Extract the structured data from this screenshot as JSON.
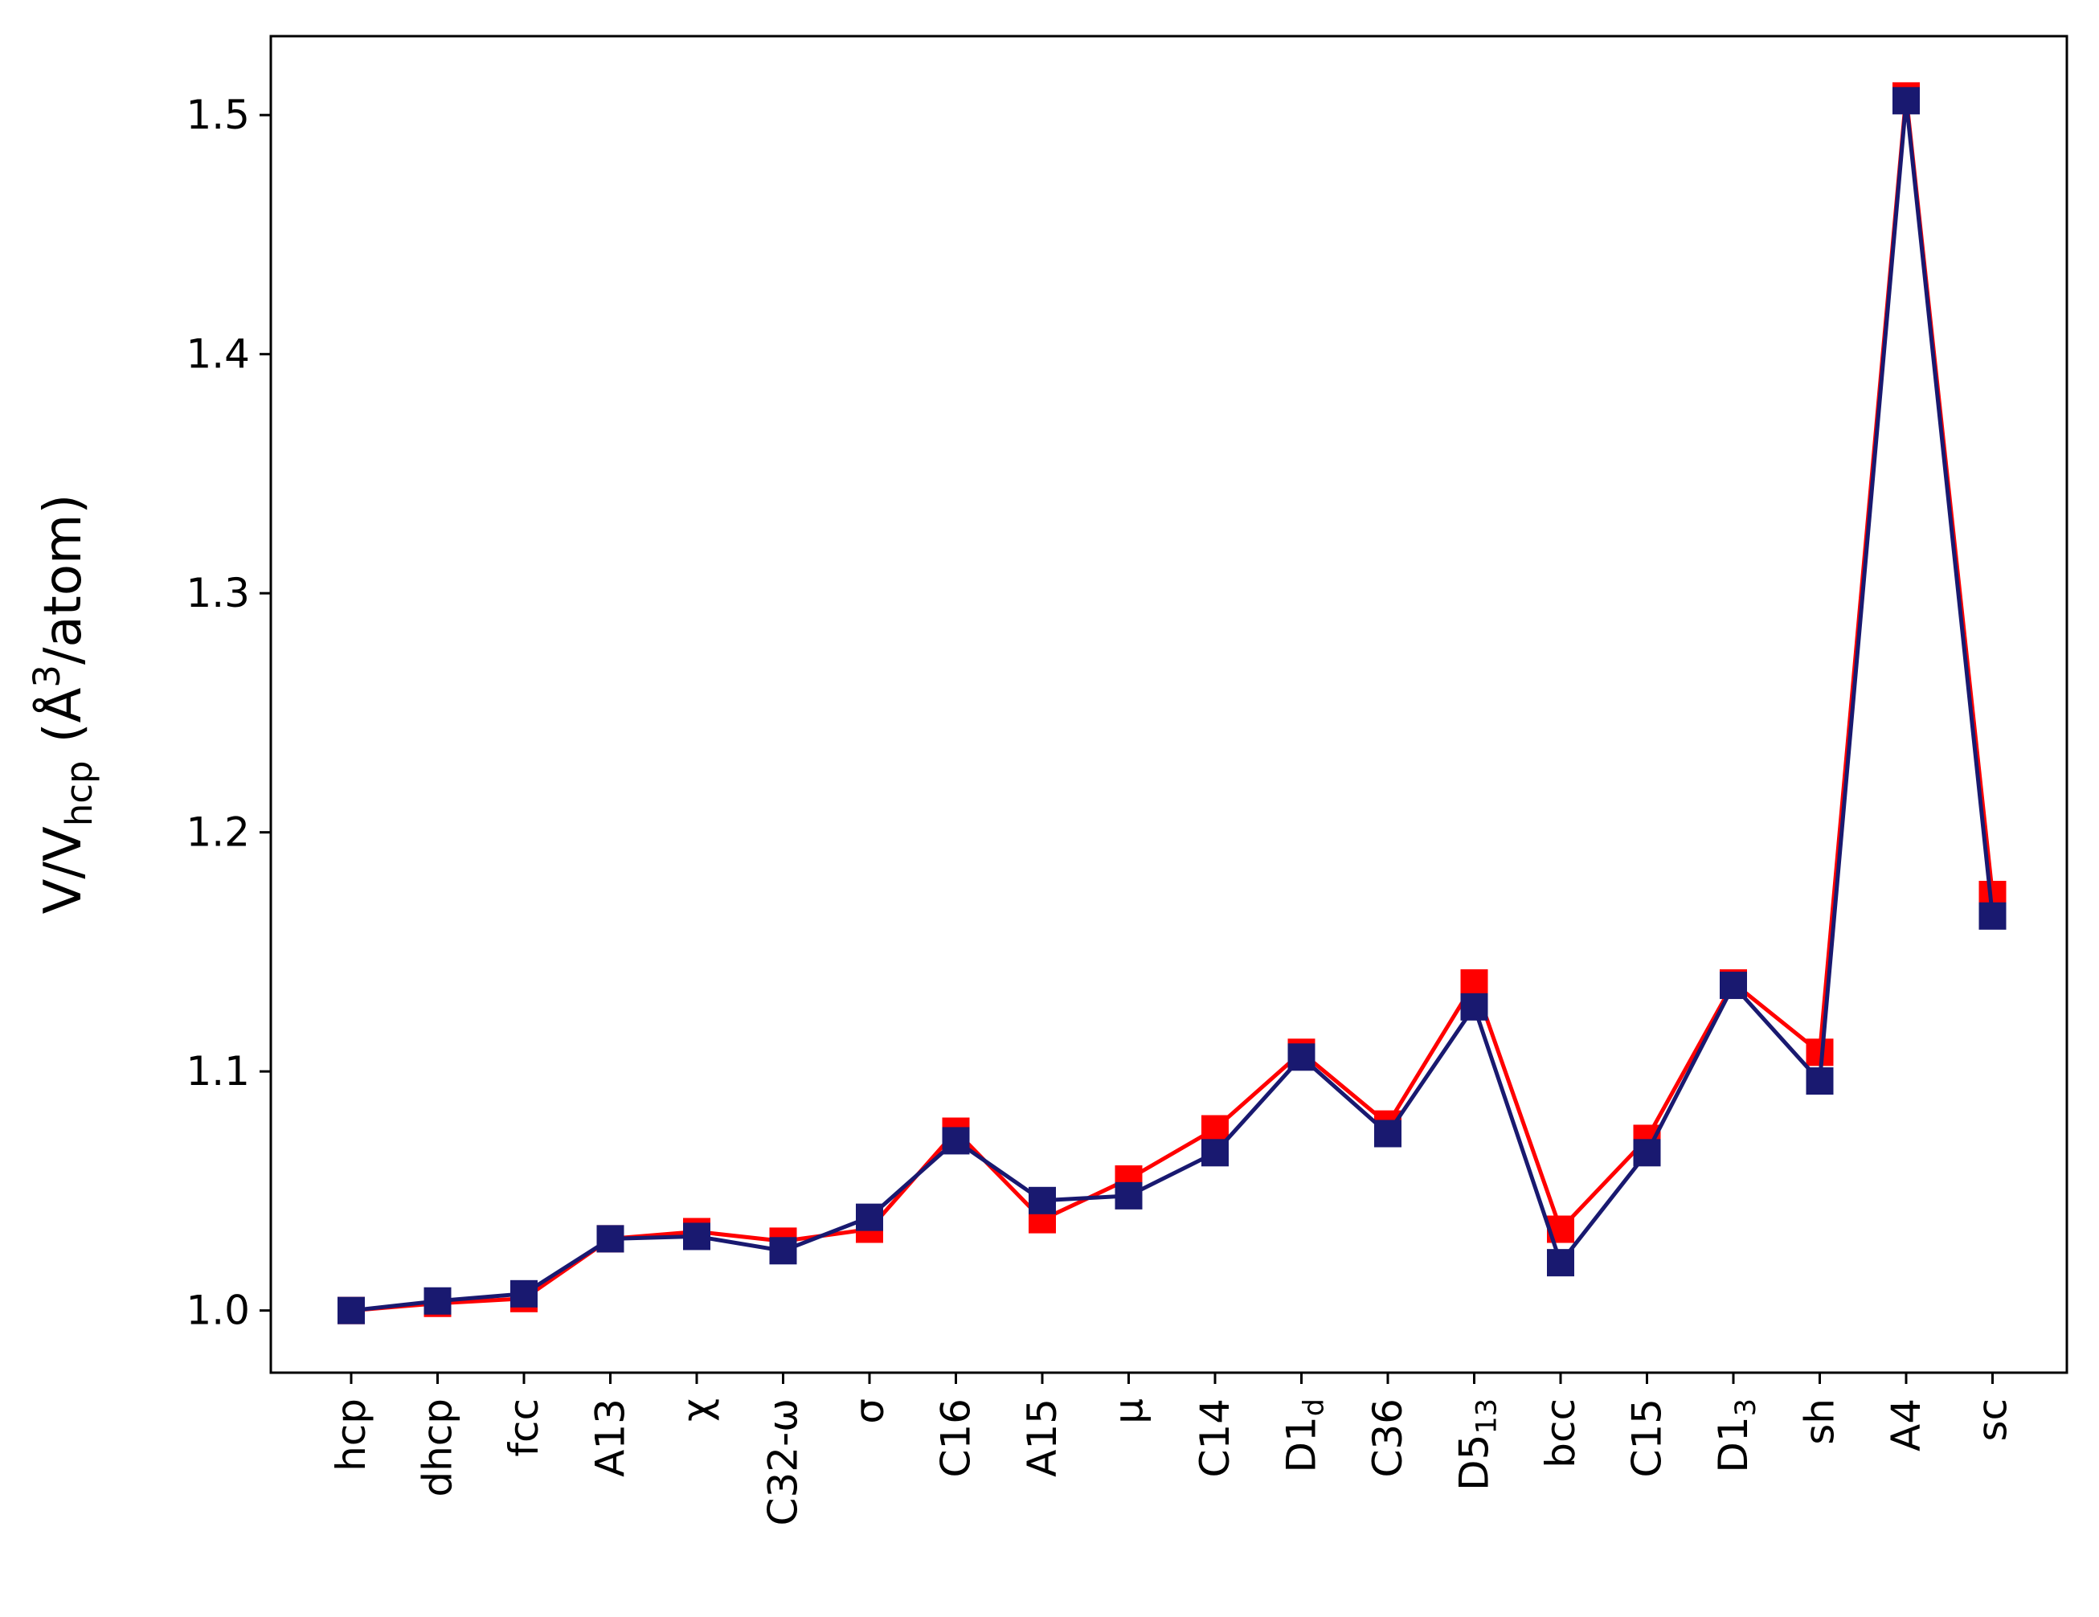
{
  "chart_data": {
    "type": "line",
    "title": "",
    "xlabel": "",
    "ylabel": "V/V",
    "ylabel_subscript": "hcp",
    "ylabel_unit_open": "(Å",
    "ylabel_unit_sup": "3",
    "ylabel_unit_close": "/atom)",
    "categories": [
      {
        "base": "hcp",
        "sub": ""
      },
      {
        "base": "dhcp",
        "sub": ""
      },
      {
        "base": "fcc",
        "sub": ""
      },
      {
        "base": "A13",
        "sub": ""
      },
      {
        "base": "χ",
        "sub": ""
      },
      {
        "base": "C32-ω",
        "sub": ""
      },
      {
        "base": "σ",
        "sub": ""
      },
      {
        "base": "C16",
        "sub": ""
      },
      {
        "base": "A15",
        "sub": ""
      },
      {
        "base": "μ",
        "sub": ""
      },
      {
        "base": "C14",
        "sub": ""
      },
      {
        "base": "D1",
        "sub": "d"
      },
      {
        "base": "C36",
        "sub": ""
      },
      {
        "base": "D5",
        "sub": "13"
      },
      {
        "base": "bcc",
        "sub": ""
      },
      {
        "base": "C15",
        "sub": ""
      },
      {
        "base": "D1",
        "sub": "3"
      },
      {
        "base": "sh",
        "sub": ""
      },
      {
        "base": "A4",
        "sub": ""
      },
      {
        "base": "sc",
        "sub": ""
      }
    ],
    "series": [
      {
        "color": "#ff0000",
        "marker": "square",
        "values": [
          1.0,
          1.003,
          1.005,
          1.03,
          1.033,
          1.029,
          1.034,
          1.075,
          1.038,
          1.055,
          1.076,
          1.108,
          1.078,
          1.137,
          1.034,
          1.072,
          1.137,
          1.108,
          1.508,
          1.174
        ]
      },
      {
        "color": "#191970",
        "marker": "square",
        "values": [
          1.0,
          1.004,
          1.007,
          1.03,
          1.031,
          1.025,
          1.039,
          1.071,
          1.046,
          1.048,
          1.066,
          1.106,
          1.074,
          1.127,
          1.02,
          1.066,
          1.136,
          1.096,
          1.506,
          1.165
        ]
      }
    ],
    "yticks": [
      "1.0",
      "1.1",
      "1.2",
      "1.3",
      "1.4",
      "1.5"
    ],
    "ylim": [
      0.974,
      1.533
    ],
    "grid": false,
    "legend": "none"
  }
}
